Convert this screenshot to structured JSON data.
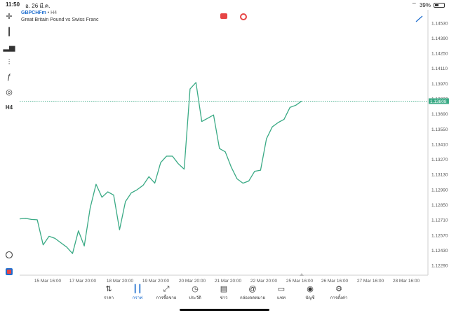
{
  "status": {
    "time": "11:50",
    "date": "อ. 26 มี.ค.",
    "battery": "39%",
    "battery_level": 0.39
  },
  "header": {
    "symbol": "GBPCHFm",
    "separator": " • ",
    "timeframe": "H4",
    "description": "Great Britain Pound vs Swiss Franc"
  },
  "toolbar": [
    {
      "name": "crosshair-icon",
      "glyph": "✛"
    },
    {
      "name": "candlestick-icon",
      "glyph": "┃"
    },
    {
      "name": "bar-chart-icon",
      "glyph": "▂▅"
    },
    {
      "name": "indicators-icon",
      "glyph": "⫶"
    },
    {
      "name": "function-icon",
      "glyph": "ƒ"
    },
    {
      "name": "shapes-icon",
      "glyph": "◎"
    },
    {
      "name": "timeframe-label",
      "glyph": "H4"
    }
  ],
  "chart_data": {
    "type": "line",
    "series": [
      {
        "values": [
          1.1272,
          1.12725,
          1.12715,
          1.12712,
          1.1248,
          1.1256,
          1.1254,
          1.125,
          1.1246,
          1.124,
          1.1261,
          1.1247,
          1.1282,
          1.1304,
          1.1292,
          1.1297,
          1.1294,
          1.1262,
          1.1288,
          1.1296,
          1.1299,
          1.1303,
          1.1311,
          1.1305,
          1.1324,
          1.133,
          1.133,
          1.1323,
          1.1318,
          1.1392,
          1.1398,
          1.1362,
          1.1365,
          1.1368,
          1.1337,
          1.1334,
          1.132,
          1.1309,
          1.1305,
          1.1307,
          1.1316,
          1.1317,
          1.1346,
          1.1357,
          1.1361,
          1.1364,
          1.1375,
          1.1377,
          1.13808
        ]
      }
    ],
    "ylim": [
      1.122,
      1.146
    ],
    "y_ticks": [
      "1.14530",
      "1.14390",
      "1.14250",
      "1.14110",
      "1.13970",
      "1.13830",
      "1.13690",
      "1.13550",
      "1.13410",
      "1.13270",
      "1.13130",
      "1.12990",
      "1.12850",
      "1.12710",
      "1.12570",
      "1.12430",
      "1.12290"
    ],
    "x_ticks": [
      "15 Mar 16:00",
      "17 Mar 20:00",
      "18 Mar 20:00",
      "19 Mar 20:00",
      "20 Mar 20:00",
      "21 Mar 20:00",
      "22 Mar 20:00",
      "25 Mar 16:00",
      "26 Mar 16:00",
      "27 Mar 16:00",
      "28 Mar 16:00"
    ],
    "current_price": "1.13808",
    "line_color": "#3aaa85",
    "grid": false
  },
  "nav": [
    {
      "label": "ราคา",
      "icon": "quotes-icon",
      "glyph": "⇅",
      "active": false
    },
    {
      "label": "กราฟ",
      "icon": "chart-icon",
      "glyph": "┃┃",
      "active": true
    },
    {
      "label": "การซื้อขาย",
      "icon": "trade-icon",
      "glyph": "⤢",
      "active": false
    },
    {
      "label": "ประวัติ",
      "icon": "history-icon",
      "glyph": "◷",
      "active": false
    },
    {
      "label": "ข่าว",
      "icon": "news-icon",
      "glyph": "▤",
      "active": false
    },
    {
      "label": "กล่องจดหมาย",
      "icon": "mail-icon",
      "glyph": "@",
      "active": false
    },
    {
      "label": "แชท",
      "icon": "chat-icon",
      "glyph": "▭",
      "active": false
    },
    {
      "label": "บัญชี",
      "icon": "account-icon",
      "glyph": "◉",
      "active": false
    },
    {
      "label": "การตั้งค่า",
      "icon": "settings-icon",
      "glyph": "⚙",
      "active": false
    }
  ]
}
